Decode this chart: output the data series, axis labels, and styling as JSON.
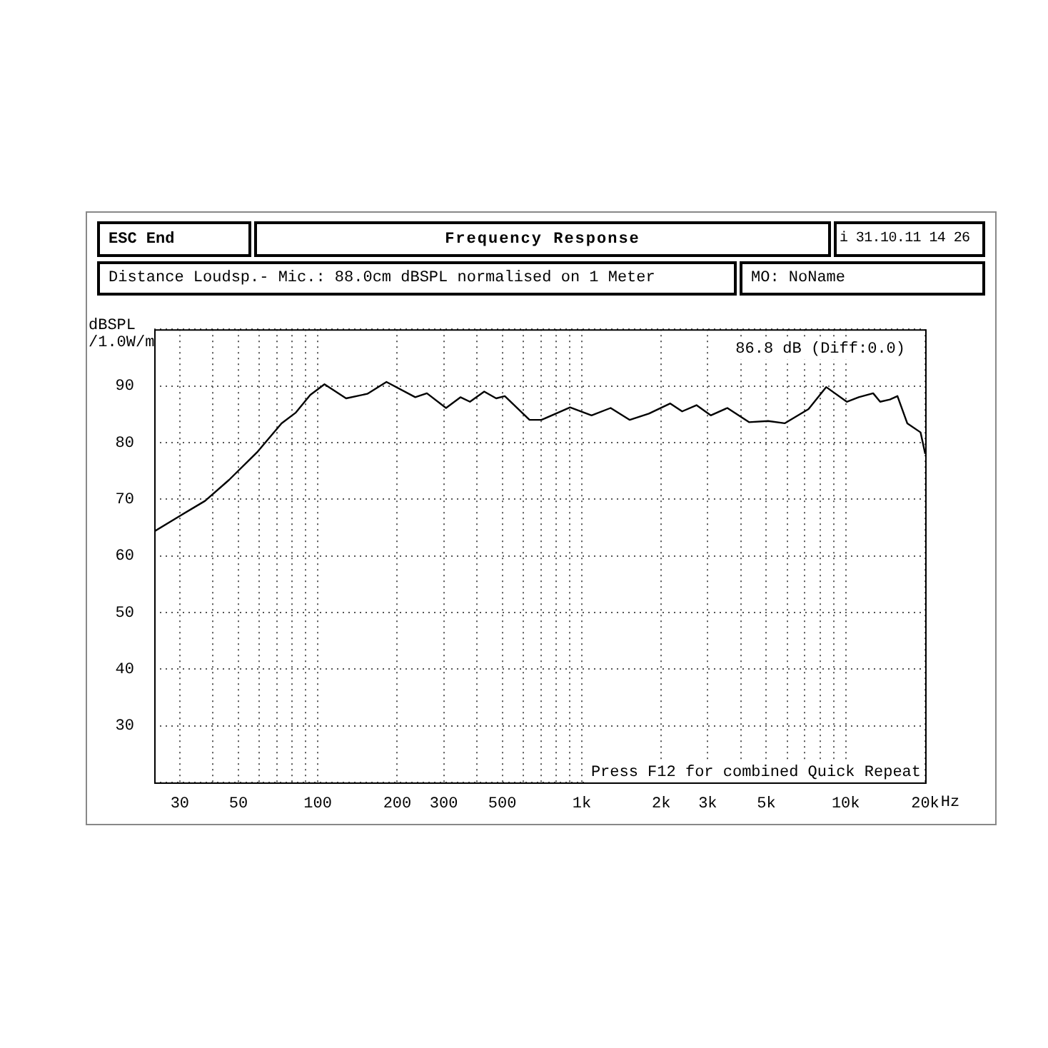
{
  "chart_data": {
    "type": "line",
    "title": "Frequency Response",
    "ylabel": "dBSPL /1.0W/m",
    "annotations": [
      "ESC End",
      "i 31.10.11 14 26",
      "Distance Loudsp.- Mic.: 88.0cm dBSPL normalised on 1 Meter",
      "MO: NoName",
      "86.8 dB (Diff:0.0)",
      "Press F12 for combined Quick Repeat"
    ],
    "x": [
      24,
      30.4,
      37.4,
      46.1,
      59.2,
      72.9,
      82.6,
      93.6,
      106,
      128,
      154,
      182,
      234,
      259,
      306,
      347,
      377,
      427,
      474,
      511,
      634,
      703,
      815,
      903,
      1089,
      1286,
      1520,
      1796,
      2164,
      2400,
      2720,
      3080,
      3560,
      4300,
      5080,
      5870,
      7230,
      8430,
      10090,
      11200,
      12700,
      13500,
      14700,
      15700,
      17100,
      19200,
      20000
    ],
    "series": [
      {
        "color": "#000000",
        "values": [
          64.3,
          67.2,
          69.7,
          73.4,
          78.4,
          83.4,
          85.3,
          88.4,
          90.3,
          87.8,
          88.6,
          90.7,
          88,
          88.7,
          86.1,
          88,
          87.2,
          89,
          87.8,
          88.2,
          84,
          84,
          85.3,
          86.2,
          84.8,
          86.1,
          84,
          85.1,
          86.9,
          85.5,
          86.6,
          84.8,
          86.1,
          83.6,
          83.8,
          83.4,
          85.9,
          89.8,
          87.2,
          88,
          88.7,
          87.2,
          87.6,
          88.2,
          83.4,
          81.8,
          78
        ]
      }
    ],
    "log": "x",
    "xlim": [
      24,
      20000
    ],
    "xticks": [
      30,
      {
        "value": 40,
        "label": null
      },
      50,
      {
        "value": 60,
        "label": null
      },
      {
        "value": 70,
        "label": null
      },
      {
        "value": 80,
        "label": null
      },
      {
        "value": 90,
        "label": null
      },
      100,
      200,
      300,
      {
        "value": 400,
        "label": null
      },
      500,
      {
        "value": 600,
        "label": null
      },
      {
        "value": 700,
        "label": null
      },
      {
        "value": 800,
        "label": null
      },
      {
        "value": 900,
        "label": null
      },
      {
        "value": 1000,
        "label": "1k"
      },
      {
        "value": 2000,
        "label": "2k"
      },
      {
        "value": 3000,
        "label": "3k"
      },
      {
        "value": 4000,
        "label": null
      },
      {
        "value": 5000,
        "label": "5k"
      },
      {
        "value": 6000,
        "label": null
      },
      {
        "value": 7000,
        "label": null
      },
      {
        "value": 8000,
        "label": null
      },
      {
        "value": 9000,
        "label": null
      },
      {
        "value": 10000,
        "label": "10k"
      },
      {
        "value": 20000,
        "label": "20k"
      }
    ],
    "xlabel": "Hz",
    "ylim": [
      20,
      100
    ],
    "yticks": [
      {
        "value": 20,
        "label": null
      },
      30,
      40,
      50,
      60,
      70,
      80,
      90,
      {
        "value": 100,
        "label": null
      }
    ],
    "grid": true,
    "legend": false,
    "marker": "none",
    "line_style": "solid"
  }
}
